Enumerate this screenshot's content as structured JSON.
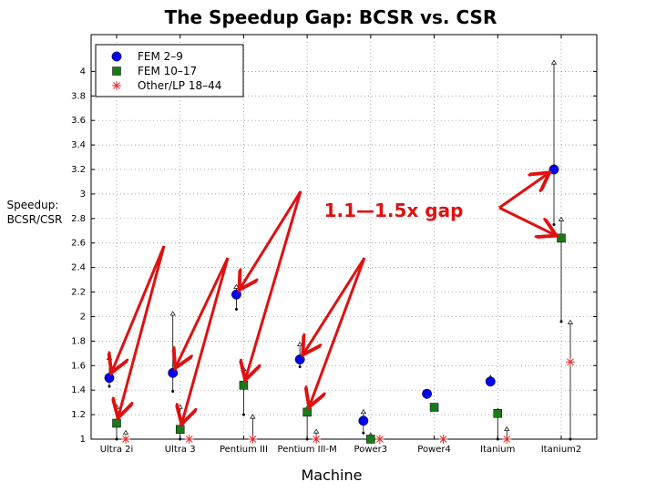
{
  "chart_data": {
    "type": "scatter",
    "title": "The Speedup Gap: BCSR vs. CSR",
    "xlabel": "Machine",
    "ylabel": [
      "Speedup:",
      "BCSR/CSR"
    ],
    "ylim": [
      1,
      4.3
    ],
    "yticks": [
      1,
      1.2,
      1.4,
      1.6,
      1.8,
      2,
      2.2,
      2.4,
      2.6,
      2.8,
      3,
      3.2,
      3.4,
      3.6,
      3.8,
      4
    ],
    "grid": true,
    "legend_position": "top-left",
    "categories": [
      "Ultra 2i",
      "Ultra 3",
      "Pentium III",
      "Pentium III-M",
      "Power3",
      "Power4",
      "Itanium",
      "Itanium2"
    ],
    "series": [
      {
        "name": "FEM 2–9",
        "marker": "circle",
        "color": "#0000ee",
        "values": [
          1.5,
          1.54,
          2.18,
          1.65,
          1.15,
          1.37,
          1.47,
          3.2
        ],
        "min": [
          1.43,
          1.39,
          2.06,
          1.59,
          1.05,
          1.34,
          1.44,
          2.75
        ],
        "max": [
          1.68,
          2.04,
          2.26,
          1.79,
          1.24,
          1.4,
          1.52,
          4.09
        ]
      },
      {
        "name": "FEM 10–17",
        "marker": "square",
        "color": "#1a7a1a",
        "values": [
          1.13,
          1.08,
          1.44,
          1.22,
          1.0,
          1.26,
          1.21,
          2.64
        ],
        "min": [
          1.0,
          1.0,
          1.2,
          1.0,
          1.0,
          1.26,
          1.0,
          1.96
        ],
        "max": [
          1.28,
          1.28,
          1.59,
          1.27,
          1.05,
          1.26,
          1.25,
          2.81
        ]
      },
      {
        "name": "Other/LP 18–44",
        "marker": "star",
        "color": "#e03030",
        "values": [
          1.0,
          1.0,
          1.0,
          1.0,
          1.0,
          1.0,
          1.0,
          1.63
        ],
        "min": [
          1.0,
          1.0,
          1.0,
          1.0,
          1.0,
          1.0,
          1.0,
          1.0
        ],
        "max": [
          1.07,
          1.0,
          1.2,
          1.08,
          1.0,
          1.0,
          1.1,
          1.97
        ]
      }
    ],
    "annotation": {
      "text": "1.1—1.5x gap",
      "color": "#e01010"
    }
  }
}
